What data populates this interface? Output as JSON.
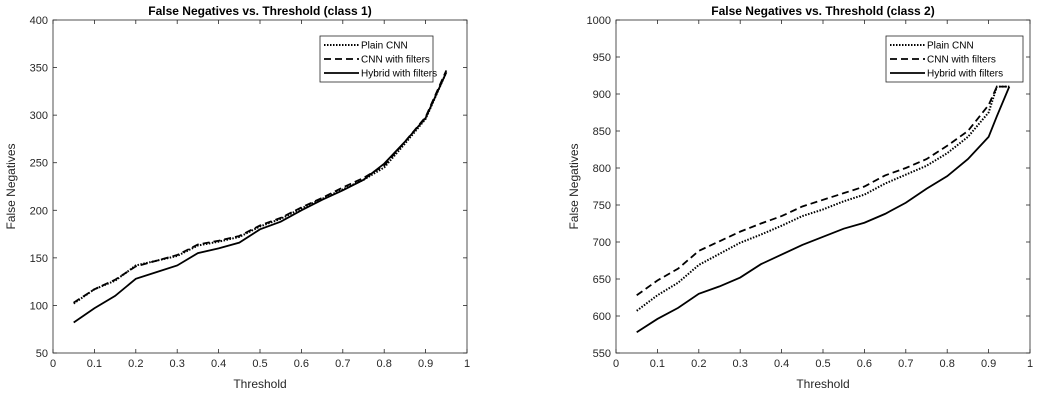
{
  "chart_data": [
    {
      "type": "line",
      "title": "False Negatives vs. Threshold (class 1)",
      "xlabel": "Threshold",
      "ylabel": "False Negatives",
      "xlim": [
        0,
        1
      ],
      "ylim": [
        50,
        400
      ],
      "xticks": [
        0,
        0.1,
        0.2,
        0.3,
        0.4,
        0.5,
        0.6,
        0.7,
        0.8,
        0.9,
        1
      ],
      "yticks": [
        50,
        100,
        150,
        200,
        250,
        300,
        350,
        400
      ],
      "grid": false,
      "legend_position": "top-right",
      "x": [
        0.05,
        0.1,
        0.15,
        0.2,
        0.25,
        0.3,
        0.35,
        0.4,
        0.45,
        0.5,
        0.55,
        0.6,
        0.65,
        0.7,
        0.75,
        0.8,
        0.85,
        0.9,
        0.95
      ],
      "series": [
        {
          "name": "Plain CNN",
          "style": "dotted",
          "color": "#000000",
          "values": [
            102,
            117,
            126,
            142,
            147,
            152,
            163,
            167,
            172,
            183,
            191,
            202,
            212,
            222,
            232,
            245,
            270,
            296,
            345
          ]
        },
        {
          "name": "CNN with filters",
          "style": "dashed",
          "color": "#000000",
          "values": [
            103,
            117,
            127,
            141,
            147,
            153,
            164,
            168,
            173,
            184,
            192,
            203,
            213,
            224,
            234,
            247,
            272,
            298,
            347
          ]
        },
        {
          "name": "Hybrid with filters",
          "style": "solid",
          "color": "#000000",
          "values": [
            82,
            97,
            110,
            128,
            135,
            142,
            155,
            160,
            166,
            180,
            188,
            200,
            211,
            221,
            232,
            249,
            272,
            297,
            345
          ]
        }
      ]
    },
    {
      "type": "line",
      "title": "False Negatives vs. Threshold (class 2)",
      "xlabel": "Threshold",
      "ylabel": "False Negatives",
      "xlim": [
        0,
        1
      ],
      "ylim": [
        550,
        1000
      ],
      "xticks": [
        0,
        0.1,
        0.2,
        0.3,
        0.4,
        0.5,
        0.6,
        0.7,
        0.8,
        0.9,
        1
      ],
      "yticks": [
        550,
        600,
        650,
        700,
        750,
        800,
        850,
        900,
        950,
        1000
      ],
      "grid": false,
      "legend_position": "top-right",
      "x": [
        0.05,
        0.1,
        0.15,
        0.2,
        0.25,
        0.3,
        0.35,
        0.4,
        0.45,
        0.5,
        0.55,
        0.6,
        0.65,
        0.7,
        0.75,
        0.8,
        0.85,
        0.9,
        0.92,
        0.95
      ],
      "series": [
        {
          "name": "Plain CNN",
          "style": "dotted",
          "color": "#000000",
          "values": [
            607,
            628,
            645,
            669,
            684,
            699,
            710,
            722,
            735,
            744,
            755,
            764,
            779,
            791,
            803,
            820,
            842,
            875,
            910,
            910
          ]
        },
        {
          "name": "CNN with filters",
          "style": "dashed",
          "color": "#000000",
          "values": [
            628,
            648,
            664,
            688,
            701,
            714,
            725,
            735,
            748,
            757,
            766,
            775,
            790,
            800,
            812,
            830,
            850,
            885,
            910,
            910
          ]
        },
        {
          "name": "Hybrid with filters",
          "style": "solid",
          "color": "#000000",
          "values": [
            578,
            596,
            611,
            630,
            640,
            652,
            670,
            683,
            696,
            707,
            718,
            726,
            738,
            753,
            772,
            789,
            812,
            842,
            870,
            910
          ]
        }
      ]
    }
  ]
}
